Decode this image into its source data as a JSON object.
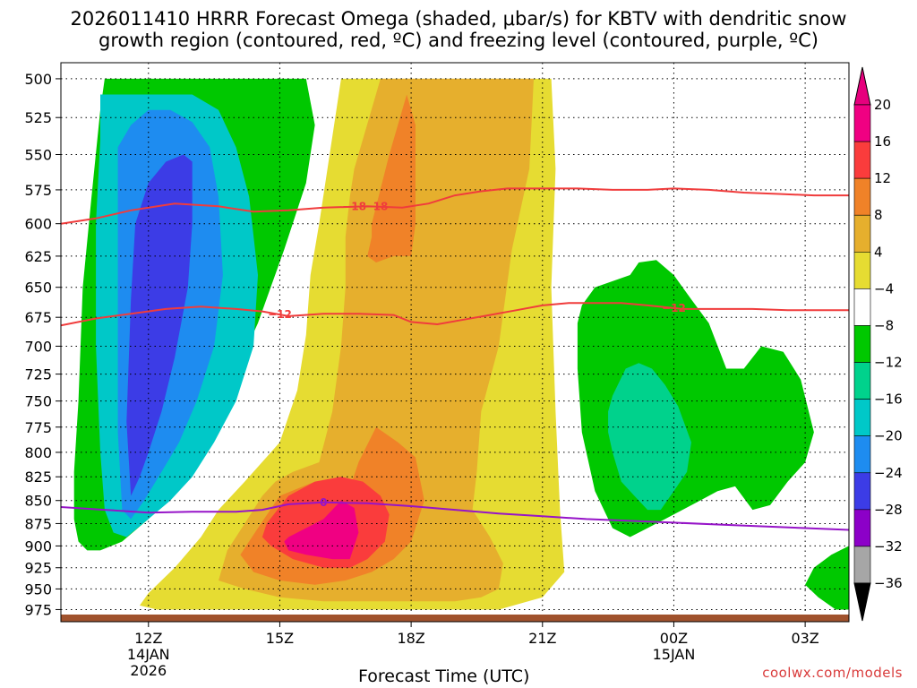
{
  "title": {
    "line1": "2026011410 HRRR Forecast Omega (shaded, μbar/s) for KBTV with dendritic snow",
    "line2": "growth region (contoured, red, ºC) and freezing level (contoured, purple, ºC)"
  },
  "credit": "coolwx.com/models",
  "chart_data": {
    "type": "time-height contour",
    "xlabel": "Forecast Time (UTC)",
    "x_ticks": [
      {
        "t": 12,
        "label": "12Z",
        "sub": [
          "14JAN",
          "2026"
        ]
      },
      {
        "t": 15,
        "label": "15Z",
        "sub": []
      },
      {
        "t": 18,
        "label": "18Z",
        "sub": []
      },
      {
        "t": 21,
        "label": "21Z",
        "sub": []
      },
      {
        "t": 24,
        "label": "00Z",
        "sub": [
          "15JAN"
        ]
      },
      {
        "t": 27,
        "label": "03Z",
        "sub": []
      }
    ],
    "xlim": [
      10.0,
      28.0
    ],
    "ylabel": "",
    "y_ticks": [
      500,
      525,
      550,
      575,
      600,
      625,
      650,
      675,
      700,
      725,
      750,
      775,
      800,
      825,
      850,
      875,
      900,
      925,
      950,
      975
    ],
    "ylim_hpa": [
      490,
      990
    ],
    "ylog": true,
    "grid": true,
    "colorbar": {
      "levels": [
        -36,
        -32,
        -28,
        -24,
        -20,
        -16,
        -12,
        -8,
        -4,
        4,
        8,
        12,
        16,
        20
      ],
      "colors": [
        "#a6a6a6",
        "#8c00c8",
        "#3c3ce6",
        "#1e8cf0",
        "#00c8c8",
        "#00d28c",
        "#00c800",
        "#ffffff",
        "#e6dc32",
        "#e6af2d",
        "#f08228",
        "#fa3c3c",
        "#f00082"
      ],
      "under_color": "#000000",
      "over_color": "#e6007d"
    },
    "omega_regions": [
      {
        "level_min": -12,
        "color": "#00c800",
        "t": [
          11.0,
          11.3,
          11.6,
          12.0,
          12.4,
          12.8,
          13.2,
          13.6,
          14.0,
          14.4,
          14.8,
          15.2,
          15.6,
          15.8,
          15.6,
          15.1,
          14.5,
          13.8,
          13.2,
          12.6,
          12.0,
          11.4,
          10.9,
          10.6,
          10.4,
          10.3,
          10.3,
          10.4,
          10.5,
          10.7,
          10.9,
          11.0
        ],
        "p": [
          500,
          500,
          500,
          500,
          500,
          500,
          500,
          500,
          500,
          500,
          500,
          500,
          500,
          530,
          570,
          620,
          680,
          740,
          790,
          840,
          870,
          895,
          905,
          905,
          895,
          870,
          820,
          750,
          650,
          580,
          520,
          500
        ]
      },
      {
        "level_min": -12,
        "color": "#00c800",
        "t": [
          21.9,
          22.2,
          22.6,
          23.0,
          23.2,
          23.6,
          24.0,
          24.4,
          24.8,
          25.2,
          25.6,
          26.0,
          26.5,
          26.9,
          27.2,
          27.0,
          26.6,
          26.2,
          25.8,
          25.4,
          25.0,
          24.6,
          24.2,
          23.8,
          23.4,
          23.0,
          22.6,
          22.2,
          21.9,
          21.8,
          21.8
        ],
        "p": [
          665,
          650,
          645,
          640,
          630,
          628,
          640,
          660,
          680,
          720,
          720,
          700,
          705,
          730,
          780,
          810,
          830,
          855,
          860,
          835,
          840,
          850,
          860,
          870,
          880,
          890,
          880,
          840,
          780,
          720,
          680
        ]
      },
      {
        "level_min": -12,
        "color": "#00c800",
        "t": [
          28.0,
          27.6,
          27.2,
          27.0,
          27.3,
          27.7,
          28.0
        ],
        "p": [
          900,
          910,
          925,
          945,
          960,
          975,
          975
        ]
      },
      {
        "level_min": -8,
        "color": "#00d28c",
        "t": [
          22.6,
          22.9,
          23.2,
          23.5,
          23.8,
          24.1,
          24.4,
          24.3,
          24.0,
          23.7,
          23.4,
          23.1,
          22.8,
          22.6,
          22.5,
          22.5
        ],
        "p": [
          745,
          720,
          715,
          720,
          735,
          755,
          790,
          820,
          840,
          860,
          860,
          845,
          830,
          800,
          780,
          760
        ]
      },
      {
        "level_min": -16,
        "color": "#00c8c8",
        "t": [
          10.9,
          11.2,
          11.8,
          12.4,
          13.0,
          13.6,
          14.0,
          14.3,
          14.5,
          14.4,
          14.0,
          13.5,
          13.0,
          12.5,
          12.0,
          11.5,
          11.2,
          11.0,
          10.9,
          10.8,
          10.8,
          10.9
        ],
        "p": [
          510,
          510,
          510,
          510,
          510,
          520,
          545,
          580,
          640,
          700,
          750,
          790,
          825,
          850,
          870,
          890,
          885,
          860,
          800,
          700,
          600,
          540
        ]
      },
      {
        "level_min": -20,
        "color": "#1e8cf0",
        "t": [
          11.3,
          11.6,
          12.0,
          12.5,
          13.0,
          13.4,
          13.6,
          13.7,
          13.5,
          13.1,
          12.7,
          12.3,
          11.9,
          11.6,
          11.4,
          11.3,
          11.3
        ],
        "p": [
          545,
          530,
          520,
          520,
          528,
          545,
          580,
          640,
          700,
          750,
          790,
          820,
          850,
          870,
          860,
          780,
          650
        ]
      },
      {
        "level_min": -24,
        "color": "#3c3ce6",
        "t": [
          11.7,
          12.0,
          12.4,
          12.8,
          13.0,
          13.0,
          12.9,
          12.6,
          12.3,
          12.0,
          11.8,
          11.6,
          11.5,
          11.6
        ],
        "p": [
          600,
          570,
          555,
          550,
          555,
          600,
          650,
          710,
          760,
          800,
          825,
          845,
          770,
          660
        ]
      },
      {
        "level_min": 4,
        "color": "#e6dc32",
        "t": [
          15.9,
          16.4,
          17.2,
          18.0,
          18.8,
          19.5,
          20.2,
          20.8,
          21.2,
          21.3,
          21.2,
          21.3,
          21.4,
          21.5,
          21.0,
          20.0,
          19.0,
          18.0,
          17.0,
          16.0,
          15.0,
          14.0,
          13.0,
          12.2,
          11.8,
          12.0,
          12.6,
          13.2,
          13.6,
          14.2,
          15.0,
          15.4,
          15.6,
          15.7
        ],
        "p": [
          600,
          500,
          500,
          500,
          500,
          500,
          500,
          500,
          500,
          560,
          650,
          760,
          860,
          930,
          960,
          975,
          975,
          975,
          975,
          975,
          975,
          975,
          975,
          975,
          970,
          955,
          925,
          890,
          860,
          830,
          790,
          740,
          690,
          640
        ]
      },
      {
        "level_min": 8,
        "color": "#e6af2d",
        "t": [
          16.7,
          17.3,
          18.0,
          18.8,
          19.5,
          20.2,
          20.8,
          20.7,
          20.3,
          20.0,
          19.6,
          19.5,
          19.4,
          19.8,
          20.1,
          20.0,
          19.6,
          19.0,
          18.0,
          17.0,
          16.0,
          15.0,
          14.2,
          13.6,
          13.8,
          14.2,
          14.6,
          14.9,
          15.3,
          15.9,
          16.2,
          16.4,
          16.5,
          16.5,
          16.6
        ],
        "p": [
          560,
          500,
          500,
          500,
          500,
          500,
          500,
          560,
          620,
          700,
          760,
          820,
          860,
          890,
          920,
          950,
          960,
          965,
          965,
          965,
          965,
          960,
          950,
          940,
          905,
          875,
          845,
          830,
          820,
          810,
          760,
          700,
          650,
          610,
          580
        ]
      },
      {
        "level_min": 12,
        "color": "#f08228",
        "t": [
          17.1,
          17.5,
          17.9,
          18.1,
          18.1,
          18.0,
          17.6,
          17.2,
          17.0,
          17.1
        ],
        "p": [
          600,
          550,
          510,
          530,
          600,
          625,
          625,
          630,
          625,
          610
        ]
      },
      {
        "level_min": 12,
        "color": "#f08228",
        "t": [
          16.4,
          16.8,
          17.2,
          17.7,
          18.1,
          18.3,
          18.0,
          17.6,
          17.1,
          16.5,
          15.8,
          15.0,
          14.4,
          14.1,
          14.5,
          15.0,
          15.8
        ],
        "p": [
          865,
          810,
          775,
          790,
          805,
          850,
          895,
          915,
          930,
          940,
          945,
          940,
          930,
          910,
          880,
          845,
          830
        ]
      },
      {
        "level_min": 16,
        "color": "#fa3c3c",
        "t": [
          14.7,
          15.2,
          15.8,
          16.4,
          16.9,
          17.3,
          17.5,
          17.4,
          17.0,
          16.6,
          16.0,
          15.3,
          14.8,
          14.6
        ],
        "p": [
          875,
          845,
          830,
          825,
          830,
          845,
          865,
          895,
          915,
          925,
          925,
          915,
          900,
          890
        ]
      },
      {
        "level_min": 20,
        "color": "#f00082",
        "t": [
          15.2,
          15.6,
          16.0,
          16.4,
          16.7,
          16.8,
          16.6,
          16.2,
          15.6,
          15.2,
          15.1
        ],
        "p": [
          890,
          880,
          870,
          850,
          858,
          885,
          915,
          915,
          910,
          905,
          895
        ]
      }
    ],
    "contours": [
      {
        "name": "-18",
        "kind": "dendritic",
        "color": "#f03c3c",
        "label_at": [
          17.2,
          16.7
        ],
        "t": [
          10.0,
          10.8,
          11.6,
          12.6,
          13.6,
          14.4,
          15.2,
          16.0,
          17.0,
          17.8,
          18.4,
          19.0,
          19.6,
          20.2,
          21.0,
          21.8,
          22.6,
          23.4,
          24.0,
          24.8,
          25.6,
          26.4,
          27.2,
          28.0
        ],
        "p": [
          600,
          596,
          590,
          585,
          587,
          591,
          590,
          588,
          587,
          588,
          585,
          579,
          576,
          574,
          574,
          574,
          575,
          575,
          574,
          575,
          577,
          578,
          579,
          579
        ]
      },
      {
        "name": "-12",
        "kind": "dendritic",
        "color": "#f03c3c",
        "label_at": [
          15.0,
          24.0
        ],
        "t": [
          10.0,
          10.8,
          11.6,
          12.4,
          13.2,
          14.0,
          14.6,
          15.2,
          16.0,
          16.8,
          17.6,
          18.0,
          18.6,
          19.2,
          19.8,
          20.4,
          21.0,
          21.6,
          22.2,
          22.8,
          23.4,
          24.2,
          25.0,
          25.8,
          26.6,
          27.4,
          28.0
        ],
        "p": [
          682,
          676,
          672,
          668,
          666,
          668,
          670,
          674,
          672,
          672,
          673,
          679,
          681,
          677,
          673,
          669,
          665,
          663,
          663,
          663,
          665,
          668,
          668,
          668,
          669,
          669,
          669
        ]
      },
      {
        "name": "0",
        "kind": "freezing",
        "color": "#9614c8",
        "label_at": [
          16.0,
          0
        ],
        "t": [
          10.0,
          11.0,
          12.0,
          13.0,
          14.0,
          14.6,
          15.2,
          16.0,
          17.0,
          18.0,
          19.0,
          20.0,
          21.0,
          22.0,
          23.0,
          24.0,
          25.0,
          26.0,
          27.0,
          28.0
        ],
        "p": [
          857,
          860,
          863,
          862,
          862,
          860,
          854,
          852,
          853,
          856,
          860,
          864,
          867,
          870,
          872,
          874,
          876,
          878,
          880,
          882
        ]
      }
    ]
  }
}
